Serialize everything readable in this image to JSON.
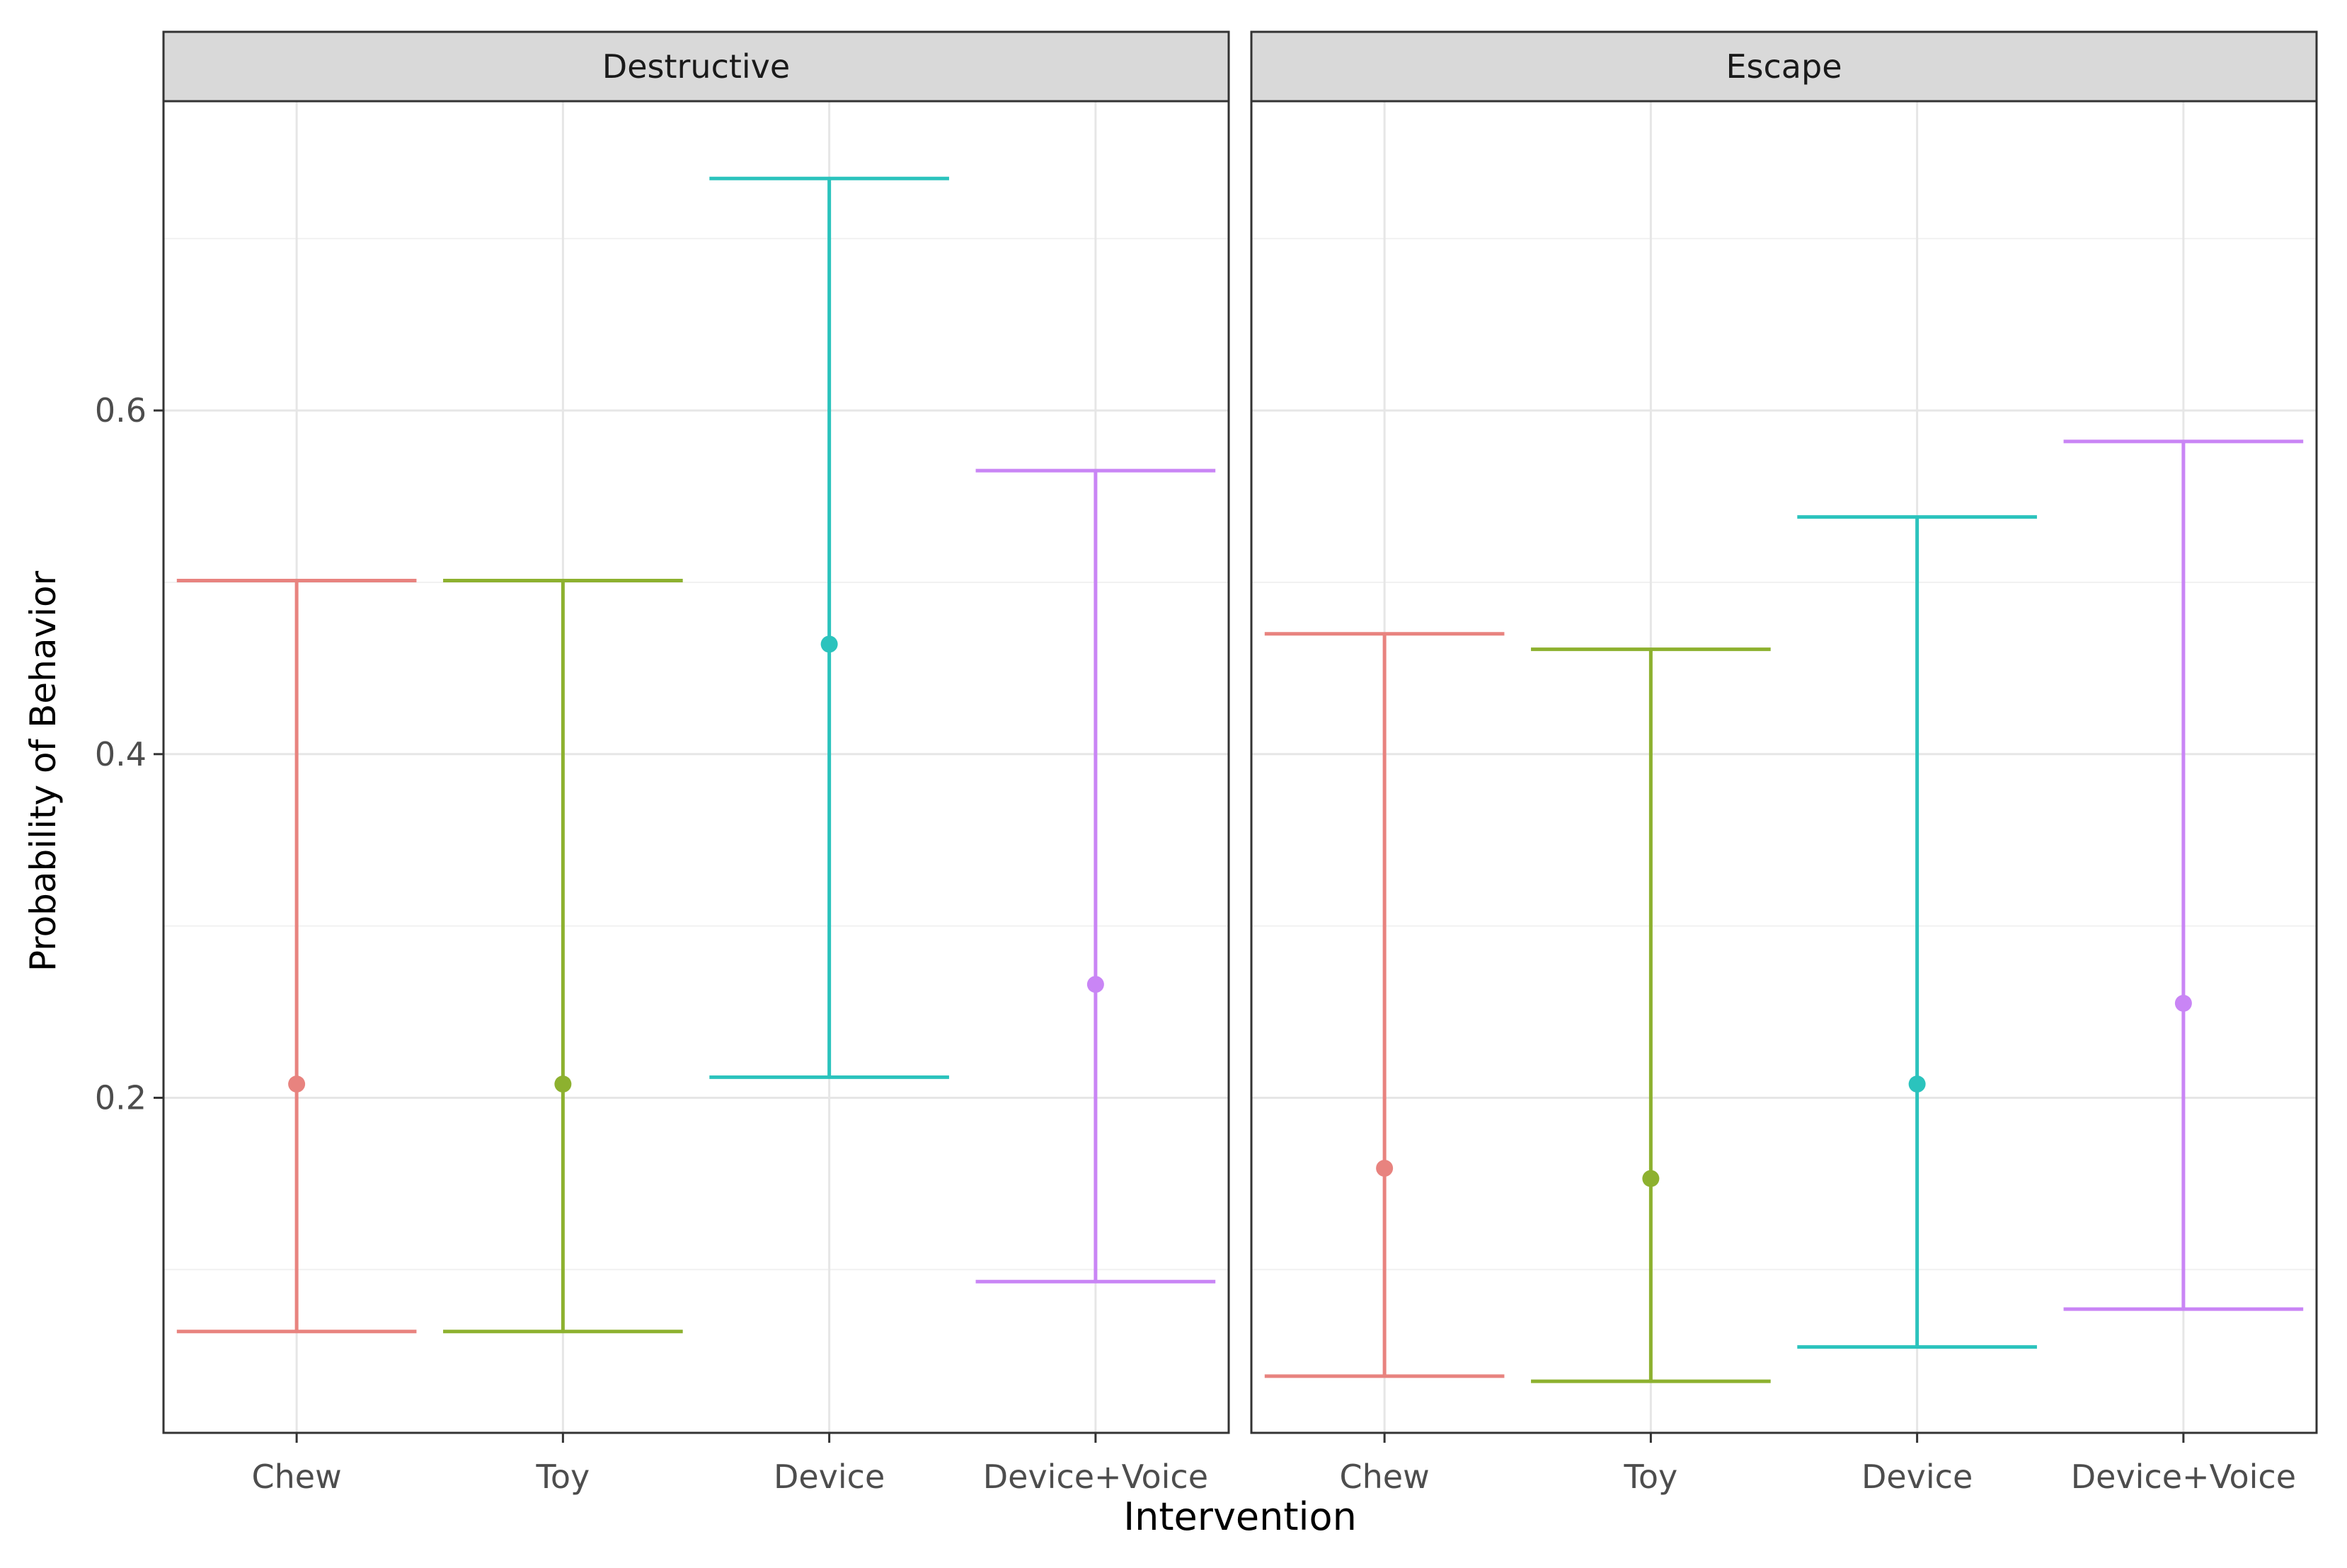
{
  "chart_data": {
    "type": "errorbar",
    "facets": [
      "Destructive",
      "Escape"
    ],
    "categories": [
      "Chew",
      "Toy",
      "Device",
      "Device+Voice"
    ],
    "xlabel": "Intervention",
    "ylabel": "Probability of Behavior",
    "ylim": [
      0.005,
      0.78
    ],
    "yticks": [
      0.2,
      0.4,
      0.6
    ],
    "ytick_labels": [
      "0.2",
      "0.4",
      "0.6"
    ],
    "grid": true,
    "legend": "none",
    "colors": {
      "Chew": "#E8837F",
      "Toy": "#8DB12F",
      "Device": "#2BC3BD",
      "Device+Voice": "#C985F5"
    },
    "series": [
      {
        "facet": "Destructive",
        "points": [
          {
            "category": "Chew",
            "estimate": 0.208,
            "lower": 0.064,
            "upper": 0.501
          },
          {
            "category": "Toy",
            "estimate": 0.208,
            "lower": 0.064,
            "upper": 0.501
          },
          {
            "category": "Device",
            "estimate": 0.464,
            "lower": 0.212,
            "upper": 0.735
          },
          {
            "category": "Device+Voice",
            "estimate": 0.266,
            "lower": 0.093,
            "upper": 0.565
          }
        ]
      },
      {
        "facet": "Escape",
        "points": [
          {
            "category": "Chew",
            "estimate": 0.159,
            "lower": 0.038,
            "upper": 0.47
          },
          {
            "category": "Toy",
            "estimate": 0.153,
            "lower": 0.035,
            "upper": 0.461
          },
          {
            "category": "Device",
            "estimate": 0.208,
            "lower": 0.055,
            "upper": 0.538
          },
          {
            "category": "Device+Voice",
            "estimate": 0.255,
            "lower": 0.077,
            "upper": 0.582
          }
        ]
      }
    ]
  }
}
